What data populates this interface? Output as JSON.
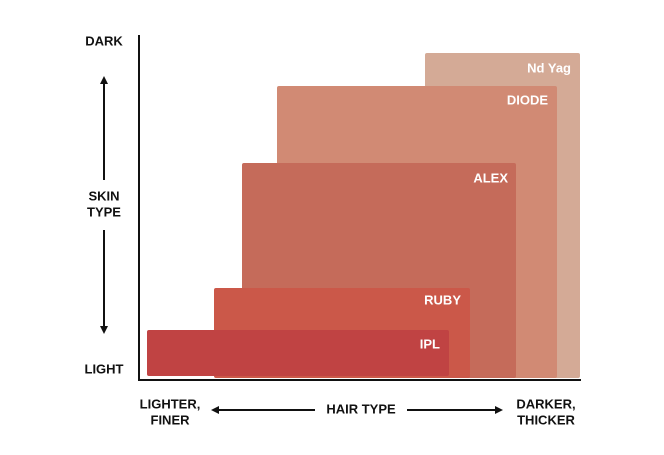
{
  "y_axis": {
    "top": "DARK",
    "label": [
      "SKIN",
      "TYPE"
    ],
    "bottom": "LIGHT"
  },
  "x_axis": {
    "left": [
      "LIGHTER,",
      "FINER"
    ],
    "label": "HAIR TYPE",
    "right": [
      "DARKER,",
      "THICKER"
    ]
  },
  "regions": [
    {
      "label": "Nd Yag"
    },
    {
      "label": "DIODE"
    },
    {
      "label": "ALEX"
    },
    {
      "label": "RUBY"
    },
    {
      "label": "IPL"
    }
  ]
}
